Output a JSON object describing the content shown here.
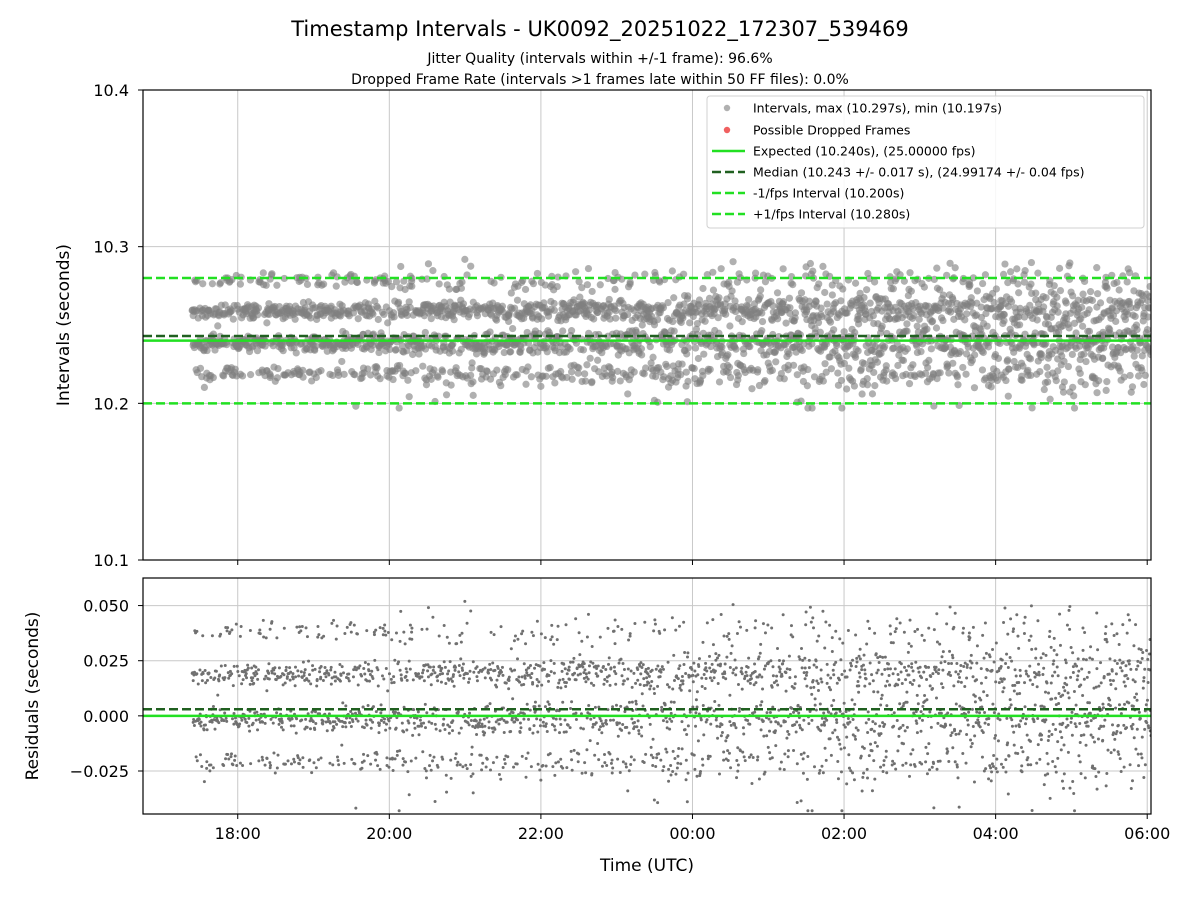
{
  "chart_data": {
    "type": "scatter",
    "title": "Timestamp Intervals - UK0092_20251022_172307_539469",
    "subtitle_lines": [
      "Jitter Quality (intervals within +/-1 frame): 96.6%",
      "Dropped Frame Rate (intervals >1 frames late within 50 FF files): 0.0%"
    ],
    "xlabel": "Time (UTC)",
    "x_ticks_hours": [
      18,
      20,
      22,
      24,
      26,
      28,
      30
    ],
    "x_tick_labels": [
      "18:00",
      "20:00",
      "22:00",
      "00:00",
      "02:00",
      "04:00",
      "06:00"
    ],
    "xlim_hours": [
      16.75,
      30.05
    ],
    "x_data_range_hours": [
      17.4,
      30.05
    ],
    "top": {
      "ylabel": "Intervals (seconds)",
      "ylim": [
        10.1,
        10.4
      ],
      "y_ticks": [
        10.1,
        10.2,
        10.3,
        10.4
      ],
      "y_tick_labels": [
        "10.1",
        "10.2",
        "10.3",
        "10.4"
      ],
      "interval_levels": [
        10.219,
        10.237,
        10.24,
        10.259,
        10.278
      ],
      "interval_max": 10.297,
      "interval_min": 10.197,
      "reference_lines": {
        "expected": 10.24,
        "median": 10.243,
        "minus_1fps": 10.2,
        "plus_1fps": 10.28
      },
      "legend": [
        "Intervals, max (10.297s), min (10.197s)",
        "Possible Dropped Frames",
        "Expected (10.240s), (25.00000 fps)",
        "Median (10.243 +/- 0.017 s), (24.99174 +/- 0.04 fps)",
        "-1/fps Interval (10.200s)",
        "+1/fps Interval (10.280s)"
      ]
    },
    "bottom": {
      "ylabel": "Residuals (seconds)",
      "ylim": [
        -0.0445,
        0.0625
      ],
      "y_ticks": [
        -0.025,
        0.0,
        0.025,
        0.05
      ],
      "y_tick_labels": [
        "−0.025",
        "0.000",
        "0.025",
        "0.050"
      ],
      "zero_line": 0.0,
      "median_residual": 0.003
    },
    "colors": {
      "intervals": "#808080",
      "residuals": "#707070",
      "dropped": "#f06060",
      "expected": "#22e022",
      "median": "#206020",
      "bounds": "#22e022",
      "grid": "#c8c8c8"
    },
    "seed": 539469,
    "point_count": 2800
  }
}
